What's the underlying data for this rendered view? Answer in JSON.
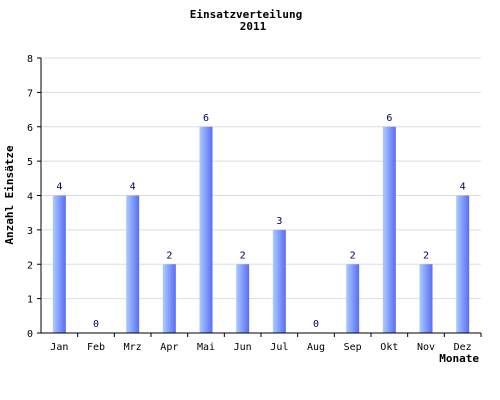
{
  "chart_data": {
    "type": "bar",
    "title": "Einsatzverteilung",
    "subtitle": "2011",
    "xlabel": "Monate",
    "ylabel": "Anzahl Einsätze",
    "categories": [
      "Jan",
      "Feb",
      "Mrz",
      "Apr",
      "Mai",
      "Jun",
      "Jul",
      "Aug",
      "Sep",
      "Okt",
      "Nov",
      "Dez"
    ],
    "values": [
      4,
      0,
      4,
      2,
      6,
      2,
      3,
      0,
      2,
      6,
      2,
      4
    ],
    "ylim": [
      0,
      8
    ],
    "yticks": [
      0,
      1,
      2,
      3,
      4,
      5,
      6,
      7,
      8
    ],
    "grid": true,
    "bar_color_light": "#aaccff",
    "bar_color_dark": "#5a6cf5",
    "grid_color": "#dddddd",
    "data_label_color": "#00005a"
  }
}
